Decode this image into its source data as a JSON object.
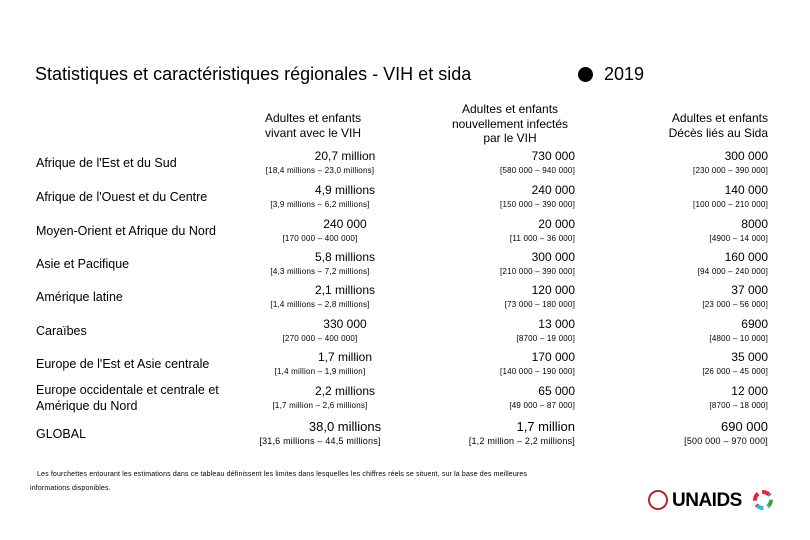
{
  "title": "Statistiques et caractéristiques régionales - VIH et sida",
  "year": "2019",
  "columns": [
    [
      "Adultes et enfants",
      "vivant avec le VIH"
    ],
    [
      "Adultes et enfants",
      "nouvellement infectés",
      "par le VIH"
    ],
    [
      "Adultes et enfants",
      "Décès liés au Sida"
    ]
  ],
  "rows": [
    {
      "region": "Afrique de l'Est et du Sud",
      "cells": [
        [
          "20,7 million",
          "[18,4 millions – 23,0 millions]"
        ],
        [
          "730 000",
          "[580 000 – 940 000]"
        ],
        [
          "300 000",
          "[230 000 – 390 000]"
        ]
      ]
    },
    {
      "region": "Afrique de l'Ouest et du Centre",
      "cells": [
        [
          "4,9 millions",
          "[3,9 millions – 6,2 millions]"
        ],
        [
          "240 000",
          "[150 000 – 390 000]"
        ],
        [
          "140 000",
          "[100 000 – 210 000]"
        ]
      ]
    },
    {
      "region": "Moyen-Orient et Afrique du Nord",
      "cells": [
        [
          "240 000",
          "[170 000 – 400 000]"
        ],
        [
          "20 000",
          "[11 000 – 36 000]"
        ],
        [
          "8000",
          "[4900 – 14 000]"
        ]
      ]
    },
    {
      "region": "Asie et Pacifique",
      "cells": [
        [
          "5,8 millions",
          "[4,3 millions – 7,2 millions]"
        ],
        [
          "300 000",
          "[210 000 – 390 000]"
        ],
        [
          "160 000",
          "[94 000 – 240 000]"
        ]
      ]
    },
    {
      "region": "Amérique latine",
      "cells": [
        [
          "2,1 millions",
          "[1,4 millions – 2,8 millions]"
        ],
        [
          "120 000",
          "[73 000 – 180 000]"
        ],
        [
          "37 000",
          "[23 000 – 56 000]"
        ]
      ]
    },
    {
      "region": "Caraïbes",
      "cells": [
        [
          "330 000",
          "[270 000 – 400 000]"
        ],
        [
          "13 000",
          "[8700 – 19 000]"
        ],
        [
          "6900",
          "[4800 – 10 000]"
        ]
      ]
    },
    {
      "region": "Europe de l'Est et Asie centrale",
      "cells": [
        [
          "1,7 million",
          "[1,4 million – 1,9 million]"
        ],
        [
          "170 000",
          "[140 000 – 190 000]"
        ],
        [
          "35 000",
          "[26 000 – 45 000]"
        ]
      ]
    },
    {
      "region": "Europe occidentale et centrale et Amérique du Nord",
      "cells": [
        [
          "2,2 millions",
          "[1,7 million – 2,6 millions]"
        ],
        [
          "65 000",
          "[49 000 – 87 000]"
        ],
        [
          "12 000",
          "[8700 – 18 000]"
        ]
      ]
    },
    {
      "region": "GLOBAL",
      "cells": [
        [
          "38,0 millions",
          "[31,6 millions – 44,5 millions]"
        ],
        [
          "1,7 million",
          "[1,2 million – 2,2 millions]"
        ],
        [
          "690 000",
          "[500 000 – 970 000]"
        ]
      ]
    }
  ],
  "footnote": [
    "Les fourchettes entourant les estimations dans ce tableau définissent les limites dans lesquelles les chiffres réels se situent, sur la base des meilleures",
    "informations disponibles."
  ],
  "logo": "UNAIDS"
}
